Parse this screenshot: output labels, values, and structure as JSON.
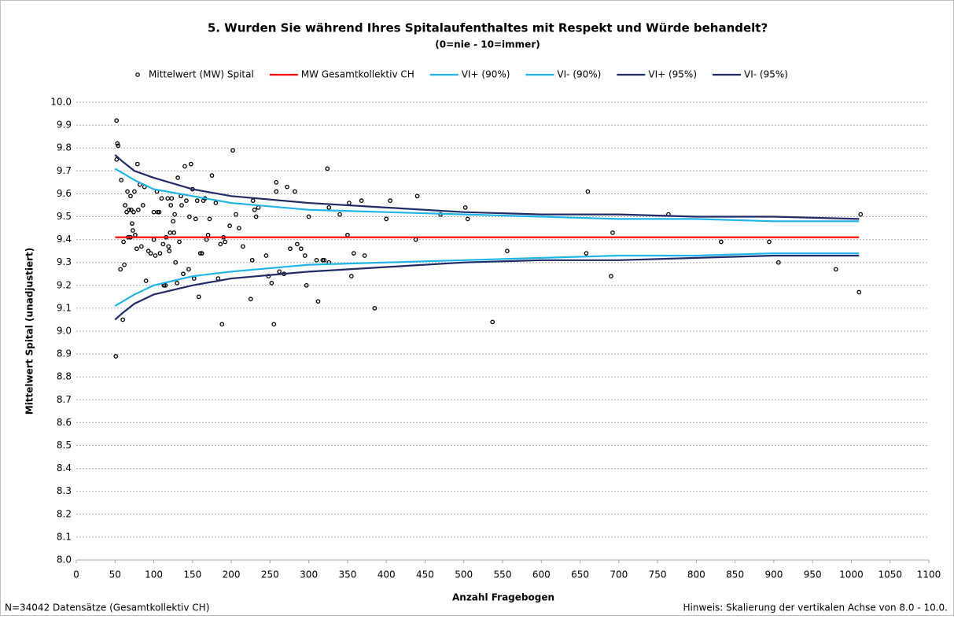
{
  "chart_data": {
    "type": "scatter",
    "title": "5. Wurden Sie während Ihres Spitalaufenthaltes mit Respekt und Würde behandelt?",
    "subtitle": "(0=nie - 10=immer)",
    "x_label": "Anzahl Fragebogen",
    "y_label": "Mittelwert Spital (unadjustiert)",
    "footnote_left": "N=34042 Datensätze (Gesamtkollektiv CH)",
    "footnote_right": "Hinweis: Skalierung der vertikalen Achse von 8.0 - 10.0.",
    "xlim": [
      0,
      1100
    ],
    "xticks": [
      0,
      50,
      100,
      150,
      200,
      250,
      300,
      350,
      400,
      450,
      500,
      550,
      600,
      650,
      700,
      750,
      800,
      850,
      900,
      950,
      1000,
      1050,
      1100
    ],
    "ylim": [
      8,
      10
    ],
    "yticks": [
      {
        "value": 8,
        "label": "8.0"
      },
      8.1,
      8.2,
      8.3,
      8.4,
      8.5,
      8.6,
      8.7,
      8.8,
      8.9,
      {
        "value": 9,
        "label": "9.0"
      },
      9.1,
      9.2,
      9.3,
      9.4,
      9.5,
      9.6,
      9.7,
      9.8,
      9.9,
      {
        "value": 10,
        "label": "10.0"
      }
    ],
    "grid": true,
    "legend": "top",
    "series": [
      {
        "name": "Mittelwert (MW) Spital",
        "type": "scatter",
        "color": "#000000",
        "x": [
          52,
          53,
          54,
          52,
          51,
          57,
          58,
          60,
          61,
          62,
          63,
          65,
          66,
          67,
          68,
          70,
          70,
          71,
          72,
          73,
          74,
          75,
          76,
          78,
          79,
          80,
          82,
          84,
          86,
          88,
          90,
          93,
          96,
          100,
          100,
          102,
          104,
          105,
          107,
          108,
          110,
          112,
          113,
          115,
          116,
          118,
          119,
          120,
          121,
          122,
          123,
          125,
          126,
          127,
          128,
          130,
          131,
          133,
          135,
          136,
          138,
          140,
          142,
          145,
          146,
          148,
          150,
          152,
          154,
          156,
          158,
          160,
          162,
          164,
          166,
          168,
          170,
          172,
          175,
          180,
          183,
          186,
          188,
          190,
          192,
          198,
          202,
          206,
          210,
          215,
          225,
          227,
          228,
          230,
          232,
          235,
          245,
          248,
          252,
          255,
          258,
          258,
          262,
          268,
          272,
          276,
          282,
          285,
          290,
          295,
          297,
          300,
          310,
          312,
          318,
          320,
          324,
          326,
          326,
          340,
          350,
          352,
          355,
          358,
          368,
          372,
          385,
          400,
          405,
          438,
          440,
          470,
          502,
          505,
          537,
          556,
          658,
          660,
          690,
          692,
          764,
          832,
          894,
          906,
          980,
          1010,
          1012
        ],
        "values": [
          9.92,
          9.82,
          9.81,
          9.75,
          8.89,
          9.27,
          9.66,
          9.05,
          9.39,
          9.29,
          9.55,
          9.52,
          9.61,
          9.41,
          9.53,
          9.59,
          9.41,
          9.53,
          9.47,
          9.44,
          9.52,
          9.61,
          9.42,
          9.36,
          9.73,
          9.53,
          9.64,
          9.37,
          9.55,
          9.63,
          9.22,
          9.35,
          9.34,
          9.52,
          9.4,
          9.33,
          9.61,
          9.52,
          9.52,
          9.34,
          9.58,
          9.38,
          9.2,
          9.2,
          9.41,
          9.58,
          9.37,
          9.35,
          9.43,
          9.55,
          9.58,
          9.48,
          9.43,
          9.51,
          9.3,
          9.21,
          9.67,
          9.39,
          9.59,
          9.55,
          9.25,
          9.72,
          9.57,
          9.27,
          9.5,
          9.73,
          9.62,
          9.23,
          9.49,
          9.57,
          9.15,
          9.34,
          9.34,
          9.57,
          9.58,
          9.4,
          9.42,
          9.49,
          9.68,
          9.56,
          9.23,
          9.38,
          9.03,
          9.41,
          9.39,
          9.46,
          9.79,
          9.51,
          9.45,
          9.37,
          9.14,
          9.31,
          9.57,
          9.53,
          9.5,
          9.54,
          9.33,
          9.24,
          9.21,
          9.03,
          9.65,
          9.61,
          9.26,
          9.25,
          9.63,
          9.36,
          9.61,
          9.38,
          9.36,
          9.33,
          9.2,
          9.5,
          9.31,
          9.13,
          9.31,
          9.31,
          9.71,
          9.54,
          9.3,
          9.51,
          9.42,
          9.56,
          9.24,
          9.34,
          9.57,
          9.33,
          9.1,
          9.49,
          9.57,
          9.4,
          9.59,
          9.51,
          9.54,
          9.49,
          9.04,
          9.35,
          9.34,
          9.61,
          9.24,
          9.43,
          9.51,
          9.39,
          9.39,
          9.3,
          9.27,
          9.17,
          9.51
        ]
      },
      {
        "name": "MW Gesamtkollektiv CH",
        "type": "line",
        "color": "#ff0000",
        "x": [
          50,
          1010
        ],
        "values": [
          9.41,
          9.41
        ]
      },
      {
        "name": "VI+ (90%)",
        "type": "line",
        "color": "#1eb4ea",
        "x": [
          50,
          60,
          75,
          100,
          150,
          200,
          300,
          400,
          500,
          600,
          700,
          800,
          900,
          1010
        ],
        "values": [
          9.71,
          9.69,
          9.66,
          9.62,
          9.59,
          9.56,
          9.53,
          9.52,
          9.51,
          9.5,
          9.49,
          9.49,
          9.48,
          9.48
        ]
      },
      {
        "name": "VI- (90%)",
        "type": "line",
        "color": "#1eb4ea",
        "x": [
          50,
          60,
          75,
          100,
          150,
          200,
          300,
          400,
          500,
          600,
          700,
          800,
          900,
          1010
        ],
        "values": [
          9.11,
          9.13,
          9.16,
          9.2,
          9.24,
          9.26,
          9.29,
          9.3,
          9.31,
          9.32,
          9.33,
          9.33,
          9.34,
          9.34
        ]
      },
      {
        "name": "VI+ (95%)",
        "type": "line",
        "color": "#1f2a66",
        "x": [
          50,
          60,
          75,
          100,
          150,
          200,
          300,
          400,
          500,
          600,
          700,
          800,
          900,
          1010
        ],
        "values": [
          9.77,
          9.74,
          9.7,
          9.67,
          9.62,
          9.59,
          9.56,
          9.54,
          9.52,
          9.51,
          9.51,
          9.5,
          9.5,
          9.49
        ]
      },
      {
        "name": "VI- (95%)",
        "type": "line",
        "color": "#1f2a66",
        "x": [
          50,
          60,
          75,
          100,
          150,
          200,
          300,
          400,
          500,
          600,
          700,
          800,
          900,
          1010
        ],
        "values": [
          9.05,
          9.08,
          9.12,
          9.16,
          9.2,
          9.23,
          9.26,
          9.28,
          9.3,
          9.31,
          9.31,
          9.32,
          9.33,
          9.33
        ]
      }
    ]
  }
}
